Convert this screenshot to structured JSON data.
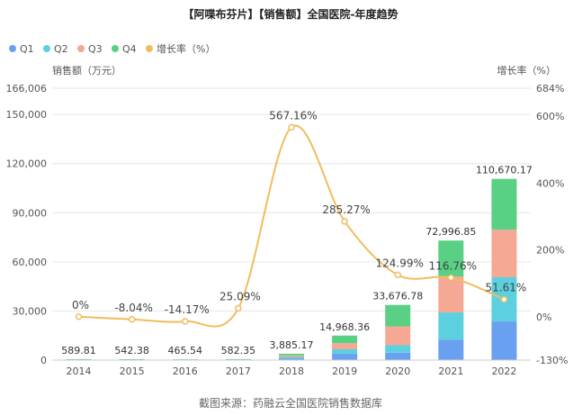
{
  "chart_data": {
    "type": "bar",
    "title": "【阿喋布芬片】【销售额】全国医院-年度趋势",
    "ylabel_left": "销售额（万元）",
    "ylabel_right": "增长率（%）",
    "categories": [
      "2014",
      "2015",
      "2016",
      "2017",
      "2018",
      "2019",
      "2020",
      "2021",
      "2022"
    ],
    "series": [
      {
        "name": "Q1",
        "color": "#6aa0f0",
        "values": [
          150,
          135,
          115,
          145,
          950,
          3800,
          4500,
          12400,
          23600
        ]
      },
      {
        "name": "Q2",
        "color": "#5dd0df",
        "values": [
          145,
          135,
          115,
          145,
          950,
          2800,
          4600,
          16700,
          27000
        ]
      },
      {
        "name": "Q3",
        "color": "#f5a893",
        "values": [
          150,
          135,
          118,
          146,
          1000,
          3700,
          11500,
          22000,
          29000
        ]
      },
      {
        "name": "Q4",
        "color": "#59d083",
        "values": [
          144.81,
          137.38,
          117.54,
          146.35,
          985.17,
          4668.36,
          13076.78,
          21896.85,
          31070.17
        ]
      }
    ],
    "totals": [
      "589.81",
      "542.38",
      "465.54",
      "582.35",
      "3,885.17",
      "14,968.36",
      "33,676.78",
      "72,996.85",
      "110,670.17"
    ],
    "growth": {
      "name": "增长率（%）",
      "color": "#f0bd5e",
      "values": [
        0,
        -8.04,
        -14.17,
        25.09,
        567.16,
        285.27,
        124.99,
        116.76,
        51.61
      ],
      "labels": [
        "0%",
        "-8.04%",
        "-14.17%",
        "25.09%",
        "567.16%",
        "285.27%",
        "124.99%",
        "116.76%",
        "51.61%"
      ]
    },
    "y_left": {
      "min": 0,
      "max": 166006,
      "ticks": [
        0,
        30000,
        60000,
        90000,
        120000,
        150000,
        166006
      ],
      "tick_labels": [
        "0",
        "30,000",
        "60,000",
        "90,000",
        "120,000",
        "150,000",
        "166,006"
      ]
    },
    "y_right": {
      "min": -130,
      "max": 684,
      "ticks": [
        -130,
        0,
        200,
        400,
        600,
        684
      ],
      "tick_labels": [
        "-130%",
        "0%",
        "200%",
        "400%",
        "600%",
        "684%"
      ]
    },
    "grid": true,
    "legend": "top-left"
  },
  "source": "截图来源：药融云全国医院销售数据库"
}
